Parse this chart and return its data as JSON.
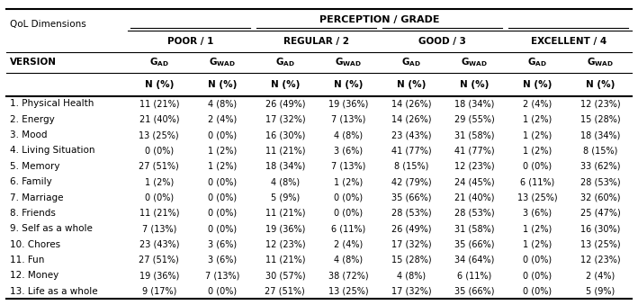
{
  "title": "PERCEPTION / GRADE",
  "col_groups": [
    "POOR / 1",
    "REGULAR / 2",
    "GOOD / 3",
    "EXCELLENT / 4"
  ],
  "row_label_header": "QoL Dimensions",
  "version_label": "VERSION",
  "n_pct_label": "N (%)",
  "rows": [
    "1. Physical Health",
    "2. Energy",
    "3. Mood",
    "4. Living Situation",
    "5. Memory",
    "6. Family",
    "7. Marriage",
    "8. Friends",
    "9. Self as a whole",
    "10. Chores",
    "11. Fun",
    "12. Money",
    "13. Life as a whole"
  ],
  "data": [
    [
      "11 (21%)",
      "4 (8%)",
      "26 (49%)",
      "19 (36%)",
      "14 (26%)",
      "18 (34%)",
      "2 (4%)",
      "12 (23%)"
    ],
    [
      "21 (40%)",
      "2 (4%)",
      "17 (32%)",
      "7 (13%)",
      "14 (26%)",
      "29 (55%)",
      "1 (2%)",
      "15 (28%)"
    ],
    [
      "13 (25%)",
      "0 (0%)",
      "16 (30%)",
      "4 (8%)",
      "23 (43%)",
      "31 (58%)",
      "1 (2%)",
      "18 (34%)"
    ],
    [
      "0 (0%)",
      "1 (2%)",
      "11 (21%)",
      "3 (6%)",
      "41 (77%)",
      "41 (77%)",
      "1 (2%)",
      "8 (15%)"
    ],
    [
      "27 (51%)",
      "1 (2%)",
      "18 (34%)",
      "7 (13%)",
      "8 (15%)",
      "12 (23%)",
      "0 (0%)",
      "33 (62%)"
    ],
    [
      "1 (2%)",
      "0 (0%)",
      "4 (8%)",
      "1 (2%)",
      "42 (79%)",
      "24 (45%)",
      "6 (11%)",
      "28 (53%)"
    ],
    [
      "0 (0%)",
      "0 (0%)",
      "5 (9%)",
      "0 (0%)",
      "35 (66%)",
      "21 (40%)",
      "13 (25%)",
      "32 (60%)"
    ],
    [
      "11 (21%)",
      "0 (0%)",
      "11 (21%)",
      "0 (0%)",
      "28 (53%)",
      "28 (53%)",
      "3 (6%)",
      "25 (47%)"
    ],
    [
      "7 (13%)",
      "0 (0%)",
      "19 (36%)",
      "6 (11%)",
      "26 (49%)",
      "31 (58%)",
      "1 (2%)",
      "16 (30%)"
    ],
    [
      "23 (43%)",
      "3 (6%)",
      "12 (23%)",
      "2 (4%)",
      "17 (32%)",
      "35 (66%)",
      "1 (2%)",
      "13 (25%)"
    ],
    [
      "27 (51%)",
      "3 (6%)",
      "11 (21%)",
      "4 (8%)",
      "15 (28%)",
      "34 (64%)",
      "0 (0%)",
      "12 (23%)"
    ],
    [
      "19 (36%)",
      "7 (13%)",
      "30 (57%)",
      "38 (72%)",
      "4 (8%)",
      "6 (11%)",
      "0 (0%)",
      "2 (4%)"
    ],
    [
      "9 (17%)",
      "0 (0%)",
      "27 (51%)",
      "13 (25%)",
      "17 (32%)",
      "35 (66%)",
      "0 (0%)",
      "5 (9%)"
    ]
  ],
  "bg_color": "#ffffff",
  "text_color": "#000000",
  "header_fontsize": 7.5,
  "data_fontsize": 7.0,
  "row_label_fontsize": 7.5
}
